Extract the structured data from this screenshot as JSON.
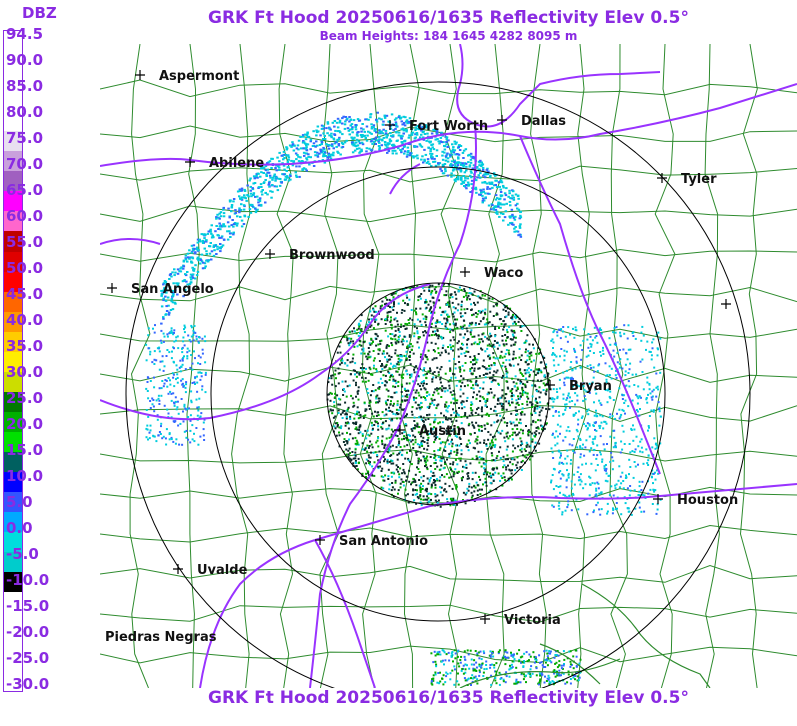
{
  "header": {
    "title": "GRK Ft Hood 20250616/1635 Reflectivity Elev 0.5°",
    "subtitle": "Beam Heights: 184 1645 4282 8095 m",
    "footer": "GRK Ft Hood 20250616/1635 Reflectivity Elev 0.5°"
  },
  "legend": {
    "unit": "DBZ",
    "labels": [
      "94.5",
      "90.0",
      "85.0",
      "80.0",
      "75.0",
      "70.0",
      "65.0",
      "60.0",
      "55.0",
      "50.0",
      "45.0",
      "40.0",
      "35.0",
      "30.0",
      "25.0",
      "20.0",
      "15.0",
      "10.0",
      "5.0",
      "0.0",
      "-5.0",
      "-10.0",
      "-15.0",
      "-20.0",
      "-25.0",
      "-30.0"
    ],
    "colors": [
      "#ffffff",
      "#ffffff",
      "#ffffff",
      "#ffffff",
      "#ffffff",
      "#e8e0f0",
      "#c9a0dc",
      "#a060c0",
      "#ff00ff",
      "#ff66cc",
      "#c00000",
      "#e00000",
      "#ff0000",
      "#ff6600",
      "#ff9900",
      "#ffcc00",
      "#ffee00",
      "#ccdd00",
      "#007a00",
      "#00b000",
      "#00e000",
      "#006060",
      "#0000ff",
      "#3355ff",
      "#00aaff",
      "#00dddd",
      "#00cccc",
      "#000000",
      "#ffffff",
      "#ffffff",
      "#ffffff",
      "#ffffff",
      "#ffffff"
    ]
  },
  "map": {
    "cities": [
      {
        "name": "Aspermont"
      },
      {
        "name": "Fort Worth"
      },
      {
        "name": "Dallas"
      },
      {
        "name": "Abilene"
      },
      {
        "name": "Tyler"
      },
      {
        "name": "Brownwood"
      },
      {
        "name": "Waco"
      },
      {
        "name": "San Angelo"
      },
      {
        "name": "Bryan"
      },
      {
        "name": "Austin"
      },
      {
        "name": "Houston"
      },
      {
        "name": "San Antonio"
      },
      {
        "name": "Uvalde"
      },
      {
        "name": "Victoria"
      },
      {
        "name": "Piedras Negras"
      },
      {
        "name": ""
      }
    ],
    "colors": {
      "county_lines": "#2e8b2e",
      "highways": "#9933ff",
      "range_rings": "#000000",
      "echo_light": "#00ccdd",
      "echo_medium": "#3366ff",
      "echo_strong": "#00aa00",
      "clutter": "#0a2a2a"
    }
  }
}
